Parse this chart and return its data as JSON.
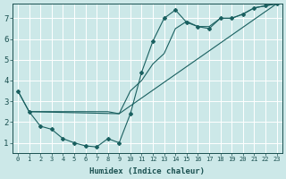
{
  "xlabel": "Humidex (Indice chaleur)",
  "bg_color": "#cce8e8",
  "line_color": "#1a6060",
  "grid_color": "#b8d8d8",
  "xlim": [
    -0.5,
    23.5
  ],
  "ylim": [
    0.5,
    7.7
  ],
  "xticks": [
    0,
    1,
    2,
    3,
    4,
    5,
    6,
    7,
    8,
    9,
    10,
    11,
    12,
    13,
    14,
    15,
    16,
    17,
    18,
    19,
    20,
    21,
    22,
    23
  ],
  "yticks": [
    1,
    2,
    3,
    4,
    5,
    6,
    7
  ],
  "line1_x": [
    0,
    1,
    2,
    3,
    4,
    5,
    6,
    7,
    8,
    9,
    10,
    11,
    12,
    13,
    14,
    15,
    16,
    17,
    18,
    19,
    20,
    21,
    22,
    23
  ],
  "line1_y": [
    3.5,
    2.5,
    1.8,
    1.65,
    1.2,
    1.0,
    0.85,
    0.8,
    1.2,
    1.0,
    2.4,
    4.4,
    5.9,
    7.0,
    7.4,
    6.8,
    6.6,
    6.5,
    7.0,
    7.0,
    7.2,
    7.5,
    7.6,
    7.7
  ],
  "line2_x": [
    1,
    9,
    23
  ],
  "line2_y": [
    2.5,
    2.4,
    7.7
  ],
  "line3_x": [
    0,
    1,
    2,
    3,
    4,
    5,
    6,
    7,
    8,
    9,
    10,
    11,
    12,
    13,
    14,
    15,
    16,
    17,
    18,
    19,
    20,
    21,
    22,
    23
  ],
  "line3_y": [
    3.5,
    2.5,
    2.5,
    2.5,
    2.5,
    2.5,
    2.5,
    2.5,
    2.5,
    2.4,
    3.5,
    4.0,
    4.8,
    5.3,
    6.5,
    6.85,
    6.6,
    6.6,
    7.0,
    7.0,
    7.2,
    7.5,
    7.6,
    7.7
  ]
}
